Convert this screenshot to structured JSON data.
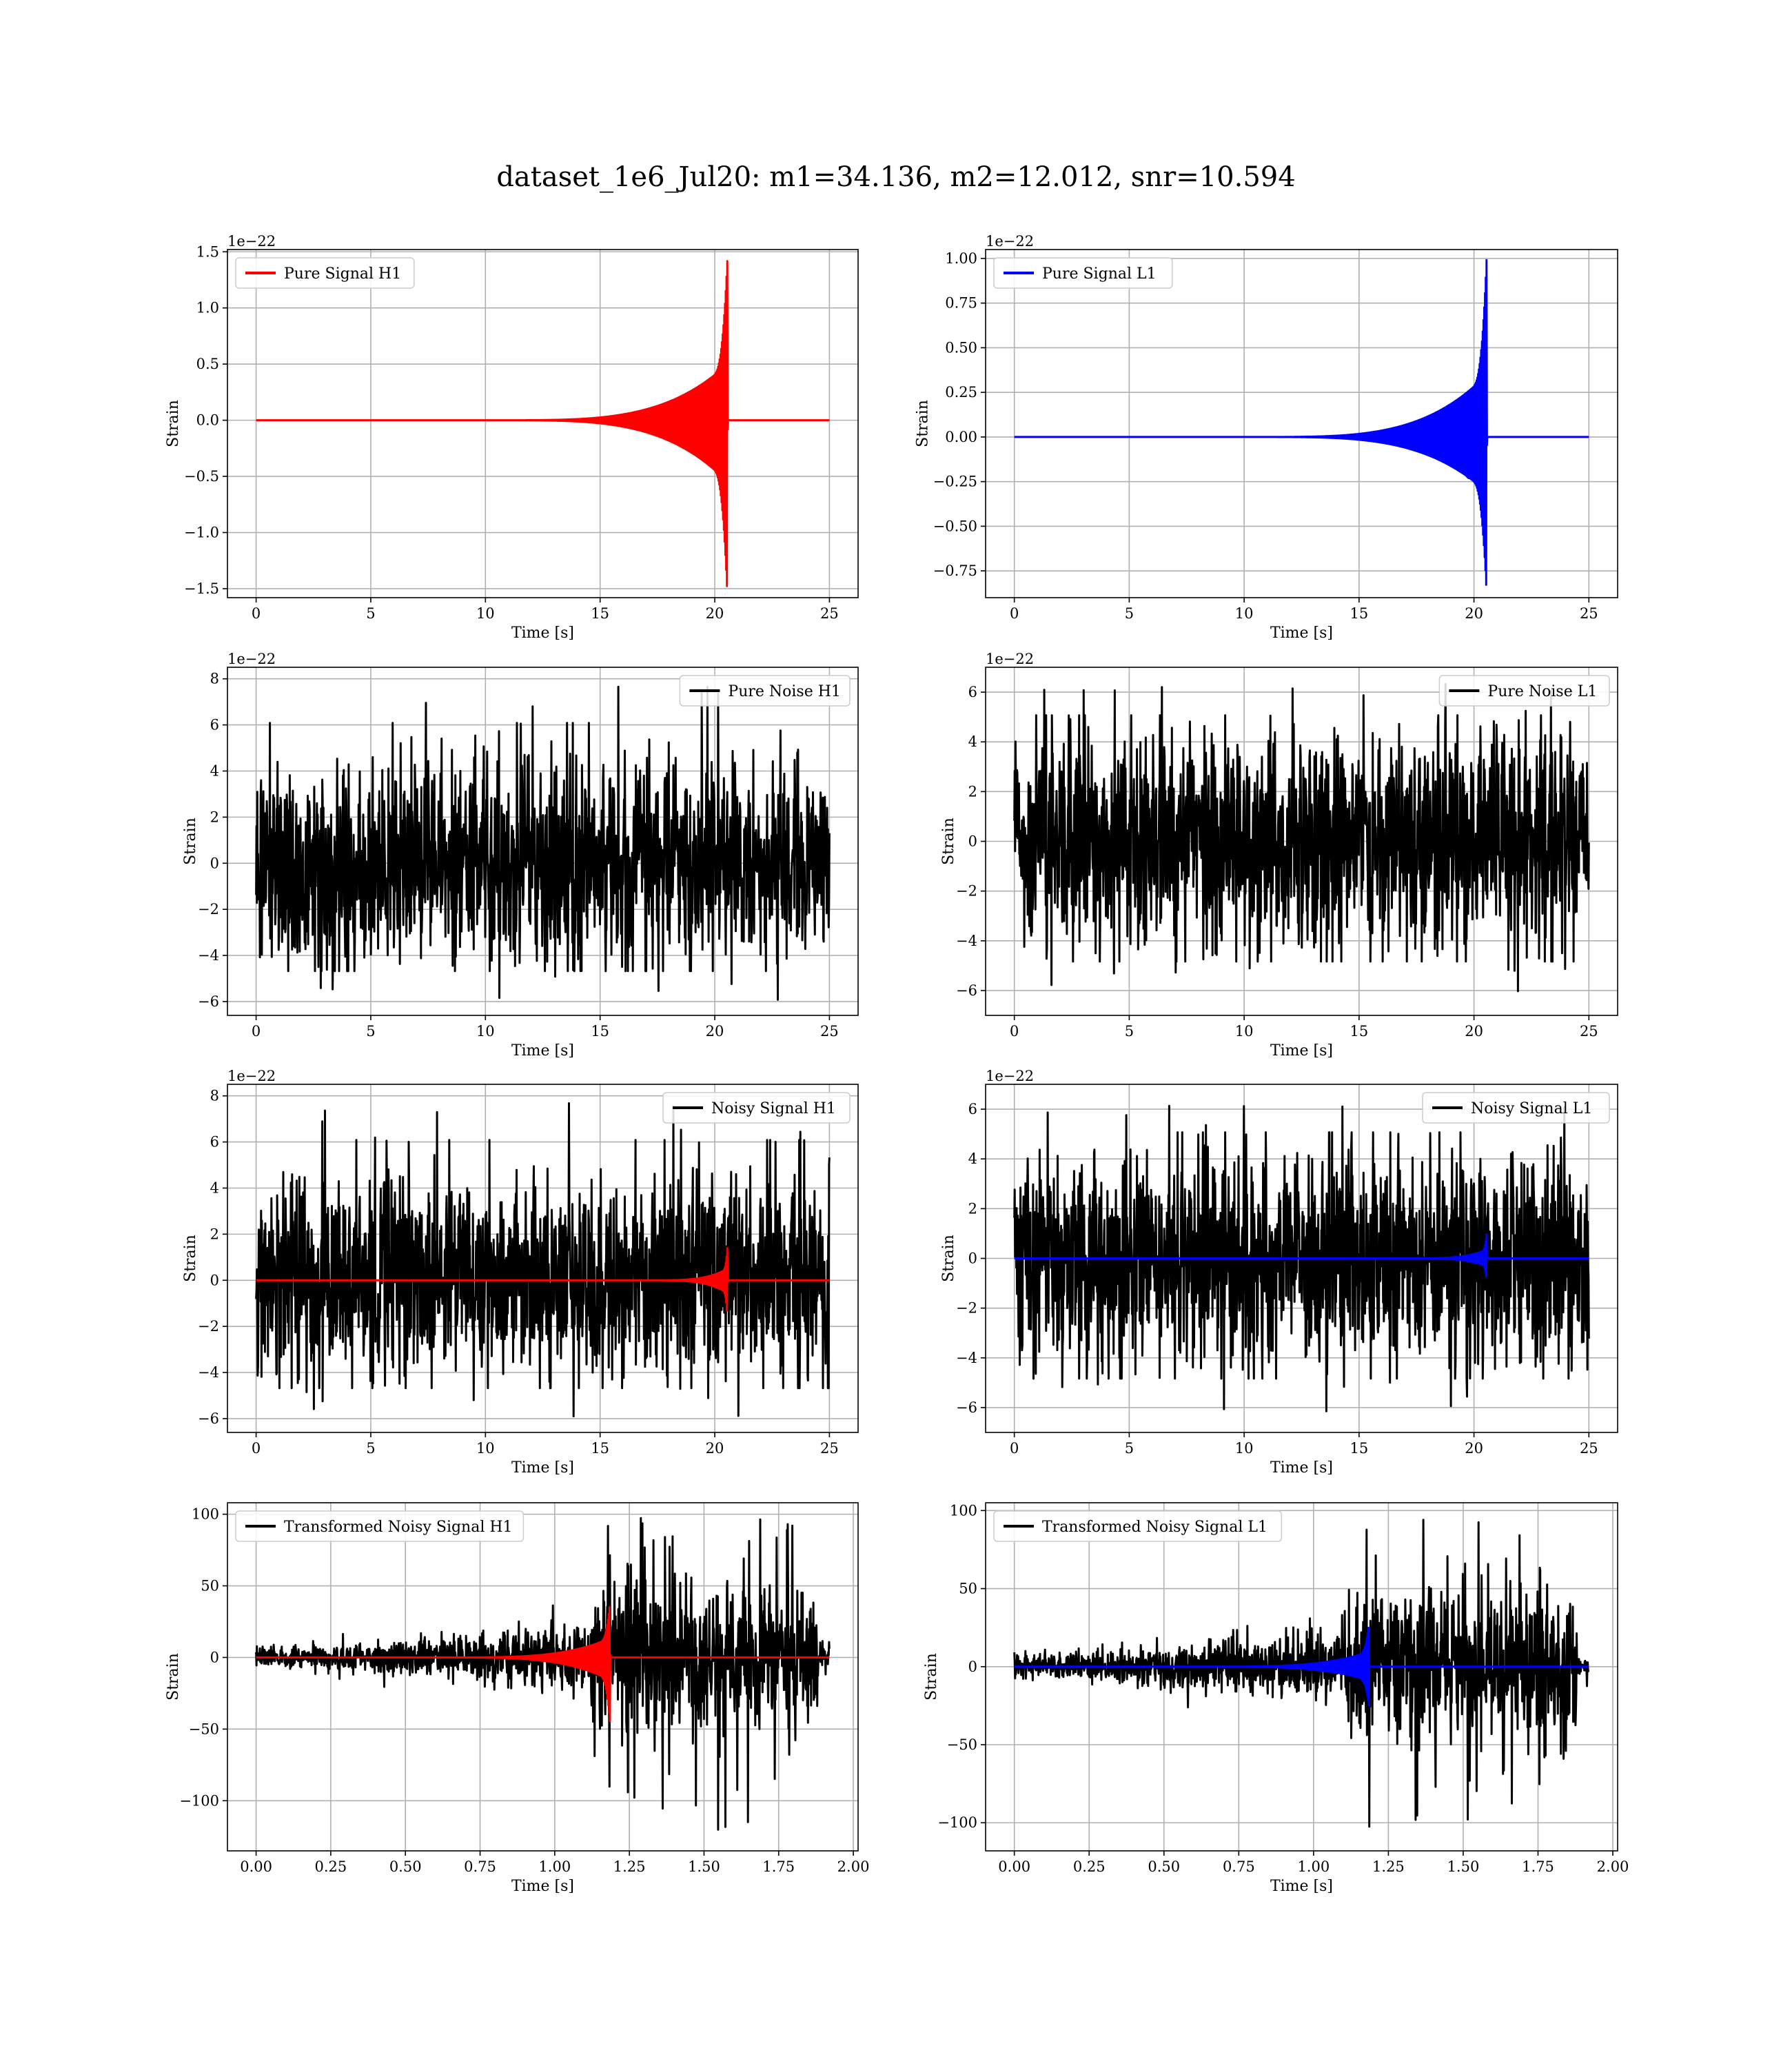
{
  "figure": {
    "title": "dataset_1e6_Jul20: m1=34.136, m2=12.012, snr=10.594"
  },
  "chart_data": [
    {
      "type": "line",
      "subplot": "top-left",
      "xlabel": "Time [s]",
      "ylabel": "Strain",
      "offset_text": "1e−22",
      "xlim": [
        -1.25,
        26.25
      ],
      "ylim": [
        -1.58,
        1.52
      ],
      "xticks": [
        0,
        5,
        10,
        15,
        20,
        25
      ],
      "xtick_labels": [
        "0",
        "5",
        "10",
        "15",
        "20",
        "25"
      ],
      "yticks": [
        -1.5,
        -1.0,
        -0.5,
        0.0,
        0.5,
        1.0,
        1.5
      ],
      "ytick_labels": [
        "−1.5",
        "−1.0",
        "−0.5",
        "0.0",
        "0.5",
        "1.0",
        "1.5"
      ],
      "grid": true,
      "legend_position": "upper left",
      "series": [
        {
          "name": "Pure Signal H1",
          "color": "#ff0000",
          "kind": "chirp",
          "x_start": 0,
          "x_end": 25,
          "onset": 10,
          "merger": 20.55,
          "peak_pos": 1.43,
          "peak_neg": -1.57,
          "plateau": 0.32
        }
      ]
    },
    {
      "type": "line",
      "subplot": "top-right",
      "xlabel": "Time [s]",
      "ylabel": "Strain",
      "offset_text": "1e−22",
      "xlim": [
        -1.25,
        26.25
      ],
      "ylim": [
        -0.9,
        1.05
      ],
      "xticks": [
        0,
        5,
        10,
        15,
        20,
        25
      ],
      "xtick_labels": [
        "0",
        "5",
        "10",
        "15",
        "20",
        "25"
      ],
      "yticks": [
        -0.75,
        -0.5,
        -0.25,
        0.0,
        0.25,
        0.5,
        0.75,
        1.0
      ],
      "ytick_labels": [
        "−0.75",
        "−0.50",
        "−0.25",
        "0.00",
        "0.25",
        "0.50",
        "0.75",
        "1.00"
      ],
      "grid": true,
      "legend_position": "upper left",
      "series": [
        {
          "name": "Pure Signal L1",
          "color": "#0000ff",
          "kind": "chirp",
          "x_start": 0,
          "x_end": 25,
          "onset": 10,
          "merger": 20.55,
          "peak_pos": 1.0,
          "peak_neg": -0.88,
          "plateau": 0.23
        }
      ]
    },
    {
      "type": "line",
      "subplot": "second-left",
      "xlabel": "Time [s]",
      "ylabel": "Strain",
      "offset_text": "1e−22",
      "xlim": [
        -1.25,
        26.25
      ],
      "ylim": [
        -6.6,
        8.5
      ],
      "xticks": [
        0,
        5,
        10,
        15,
        20,
        25
      ],
      "xtick_labels": [
        "0",
        "5",
        "10",
        "15",
        "20",
        "25"
      ],
      "yticks": [
        -6,
        -4,
        -2,
        0,
        2,
        4,
        6,
        8
      ],
      "ytick_labels": [
        "−6",
        "−4",
        "−2",
        "0",
        "2",
        "4",
        "6",
        "8"
      ],
      "grid": true,
      "legend_position": "upper right",
      "series": [
        {
          "name": "Pure Noise H1",
          "color": "#000000",
          "kind": "noise",
          "x_start": 0,
          "x_end": 25,
          "sigma": 1.15,
          "max": 7.8,
          "min": -6.0
        }
      ]
    },
    {
      "type": "line",
      "subplot": "second-right",
      "xlabel": "Time [s]",
      "ylabel": "Strain",
      "offset_text": "1e−22",
      "xlim": [
        -1.25,
        26.25
      ],
      "ylim": [
        -7.0,
        7.0
      ],
      "xticks": [
        0,
        5,
        10,
        15,
        20,
        25
      ],
      "xtick_labels": [
        "0",
        "5",
        "10",
        "15",
        "20",
        "25"
      ],
      "yticks": [
        -6,
        -4,
        -2,
        0,
        2,
        4,
        6
      ],
      "ytick_labels": [
        "−6",
        "−4",
        "−2",
        "0",
        "2",
        "4",
        "6"
      ],
      "grid": true,
      "legend_position": "upper right",
      "series": [
        {
          "name": "Pure Noise L1",
          "color": "#000000",
          "kind": "noise",
          "x_start": 0,
          "x_end": 25,
          "sigma": 1.15,
          "max": 6.5,
          "min": -6.2
        }
      ]
    },
    {
      "type": "line",
      "subplot": "third-left",
      "xlabel": "Time [s]",
      "ylabel": "Strain",
      "offset_text": "1e−22",
      "xlim": [
        -1.25,
        26.25
      ],
      "ylim": [
        -6.6,
        8.5
      ],
      "xticks": [
        0,
        5,
        10,
        15,
        20,
        25
      ],
      "xtick_labels": [
        "0",
        "5",
        "10",
        "15",
        "20",
        "25"
      ],
      "yticks": [
        -6,
        -4,
        -2,
        0,
        2,
        4,
        6,
        8
      ],
      "ytick_labels": [
        "−6",
        "−4",
        "−2",
        "0",
        "2",
        "4",
        "6",
        "8"
      ],
      "grid": true,
      "legend_position": "upper right",
      "series": [
        {
          "name": "Noisy Signal H1",
          "color": "#000000",
          "kind": "noise",
          "x_start": 0,
          "x_end": 25,
          "sigma": 1.15,
          "max": 7.8,
          "min": -6.0
        },
        {
          "name": "",
          "color": "#ff0000",
          "kind": "chirp",
          "x_start": 0,
          "x_end": 25,
          "onset": 17,
          "merger": 20.55,
          "peak_pos": 1.43,
          "peak_neg": -1.57,
          "plateau": 0.32
        }
      ]
    },
    {
      "type": "line",
      "subplot": "third-right",
      "xlabel": "Time [s]",
      "ylabel": "Strain",
      "offset_text": "1e−22",
      "xlim": [
        -1.25,
        26.25
      ],
      "ylim": [
        -7.0,
        7.0
      ],
      "xticks": [
        0,
        5,
        10,
        15,
        20,
        25
      ],
      "xtick_labels": [
        "0",
        "5",
        "10",
        "15",
        "20",
        "25"
      ],
      "yticks": [
        -6,
        -4,
        -2,
        0,
        2,
        4,
        6
      ],
      "ytick_labels": [
        "−6",
        "−4",
        "−2",
        "0",
        "2",
        "4",
        "6"
      ],
      "grid": true,
      "legend_position": "upper right",
      "series": [
        {
          "name": "Noisy Signal L1",
          "color": "#000000",
          "kind": "noise",
          "x_start": 0,
          "x_end": 25,
          "sigma": 1.15,
          "max": 6.5,
          "min": -6.2
        },
        {
          "name": "",
          "color": "#0000ff",
          "kind": "chirp",
          "x_start": 0,
          "x_end": 25,
          "onset": 17,
          "merger": 20.55,
          "peak_pos": 1.0,
          "peak_neg": -0.88,
          "plateau": 0.23
        }
      ]
    },
    {
      "type": "line",
      "subplot": "bottom-left",
      "xlabel": "Time [s]",
      "ylabel": "Strain",
      "offset_text": "",
      "xlim": [
        -0.096,
        2.016
      ],
      "ylim": [
        -135,
        108
      ],
      "xticks": [
        0.0,
        0.25,
        0.5,
        0.75,
        1.0,
        1.25,
        1.5,
        1.75,
        2.0
      ],
      "xtick_labels": [
        "0.00",
        "0.25",
        "0.50",
        "0.75",
        "1.00",
        "1.25",
        "1.50",
        "1.75",
        "2.00"
      ],
      "yticks": [
        -100,
        -50,
        0,
        50,
        100
      ],
      "ytick_labels": [
        "−100",
        "−50",
        "0",
        "50",
        "100"
      ],
      "grid": true,
      "legend_position": "upper left",
      "series": [
        {
          "name": "Transformed Noisy Signal H1",
          "color": "#000000",
          "kind": "whitened",
          "x_start": 0,
          "x_end": 1.92,
          "jump": 1.12,
          "end_taper": 1.88,
          "max": 100,
          "min": -125
        },
        {
          "name": "",
          "color": "#ff0000",
          "kind": "chirp",
          "x_start": 0,
          "x_end": 1.92,
          "onset": 0.6,
          "merger": 1.185,
          "peak_pos": 38,
          "peak_neg": -45,
          "plateau": 0
        }
      ]
    },
    {
      "type": "line",
      "subplot": "bottom-right",
      "xlabel": "Time [s]",
      "ylabel": "Strain",
      "offset_text": "",
      "xlim": [
        -0.096,
        2.016
      ],
      "ylim": [
        -118,
        105
      ],
      "xticks": [
        0.0,
        0.25,
        0.5,
        0.75,
        1.0,
        1.25,
        1.5,
        1.75,
        2.0
      ],
      "xtick_labels": [
        "0.00",
        "0.25",
        "0.50",
        "0.75",
        "1.00",
        "1.25",
        "1.50",
        "1.75",
        "2.00"
      ],
      "yticks": [
        -100,
        -50,
        0,
        50,
        100
      ],
      "ytick_labels": [
        "−100",
        "−50",
        "0",
        "50",
        "100"
      ],
      "grid": true,
      "legend_position": "upper left",
      "series": [
        {
          "name": "Transformed Noisy Signal L1",
          "color": "#000000",
          "kind": "whitened",
          "x_start": 0,
          "x_end": 1.92,
          "jump": 1.11,
          "end_taper": 1.88,
          "max": 98,
          "min": -108
        },
        {
          "name": "",
          "color": "#0000ff",
          "kind": "chirp",
          "x_start": 0,
          "x_end": 1.92,
          "onset": 0.6,
          "merger": 1.185,
          "peak_pos": 27,
          "peak_neg": -25,
          "plateau": 0
        }
      ]
    }
  ]
}
